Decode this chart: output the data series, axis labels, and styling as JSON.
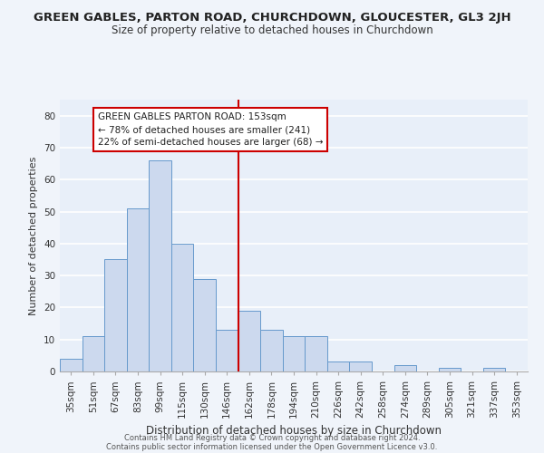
{
  "title": "GREEN GABLES, PARTON ROAD, CHURCHDOWN, GLOUCESTER, GL3 2JH",
  "subtitle": "Size of property relative to detached houses in Churchdown",
  "xlabel": "Distribution of detached houses by size in Churchdown",
  "ylabel": "Number of detached properties",
  "bar_labels": [
    "35sqm",
    "51sqm",
    "67sqm",
    "83sqm",
    "99sqm",
    "115sqm",
    "130sqm",
    "146sqm",
    "162sqm",
    "178sqm",
    "194sqm",
    "210sqm",
    "226sqm",
    "242sqm",
    "258sqm",
    "274sqm",
    "289sqm",
    "305sqm",
    "321sqm",
    "337sqm",
    "353sqm"
  ],
  "bar_values": [
    4,
    11,
    35,
    51,
    66,
    40,
    29,
    13,
    19,
    13,
    11,
    11,
    3,
    3,
    0,
    2,
    0,
    1,
    0,
    1,
    0
  ],
  "bar_color": "#ccd9ee",
  "bar_edge_color": "#6699cc",
  "bg_color": "#e8eff9",
  "grid_color": "#ffffff",
  "reference_line_x": 7.5,
  "reference_line_color": "#cc0000",
  "annotation_text": "GREEN GABLES PARTON ROAD: 153sqm\n← 78% of detached houses are smaller (241)\n22% of semi-detached houses are larger (68) →",
  "annotation_box_color": "#cc0000",
  "fig_bg_color": "#f0f4fa",
  "footer_line1": "Contains HM Land Registry data © Crown copyright and database right 2024.",
  "footer_line2": "Contains public sector information licensed under the Open Government Licence v3.0.",
  "ylim": [
    0,
    85
  ],
  "yticks": [
    0,
    10,
    20,
    30,
    40,
    50,
    60,
    70,
    80
  ],
  "title_fontsize": 9.5,
  "subtitle_fontsize": 8.5,
  "ylabel_fontsize": 8,
  "xlabel_fontsize": 8.5,
  "tick_fontsize": 7.5,
  "annotation_fontsize": 7.5,
  "footer_fontsize": 6.0
}
